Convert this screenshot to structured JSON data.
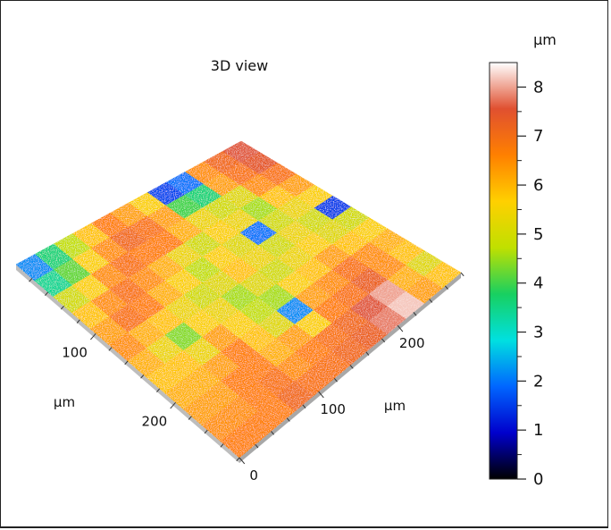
{
  "chart_data": {
    "type": "heatmap",
    "title": "3D view",
    "surface_unit": "µm",
    "x_axis": {
      "label": "µm",
      "ticks": [
        "0",
        "100",
        "200"
      ],
      "range": [
        0,
        280
      ]
    },
    "y_axis": {
      "label": "µm",
      "ticks": [
        "100",
        "200"
      ],
      "range": [
        0,
        280
      ]
    },
    "colorbar": {
      "unit": "µm",
      "range": [
        0,
        8.5
      ],
      "ticks": [
        "0",
        "1",
        "2",
        "3",
        "4",
        "5",
        "6",
        "7",
        "8"
      ],
      "colormap": [
        "#000000",
        "#0000cc",
        "#0066ff",
        "#00e0e0",
        "#18d060",
        "#c0e000",
        "#ffd000",
        "#ff8000",
        "#e05030",
        "#ffffff"
      ]
    },
    "surface_height_grid": [
      [
        7.6,
        7.4,
        6.8,
        6.2,
        5.6,
        1.5,
        5.0,
        5.6,
        6.0,
        5.8,
        5.2,
        5.8
      ],
      [
        7.0,
        6.8,
        6.4,
        5.8,
        5.4,
        5.0,
        5.2,
        5.8,
        6.4,
        6.4,
        6.0,
        6.2
      ],
      [
        6.4,
        6.2,
        5.2,
        4.6,
        5.0,
        5.4,
        5.6,
        6.2,
        6.8,
        7.2,
        8.0,
        8.2
      ],
      [
        2.0,
        3.6,
        5.0,
        5.4,
        2.0,
        5.0,
        5.4,
        5.8,
        6.4,
        6.8,
        7.6,
        7.8
      ],
      [
        1.6,
        4.0,
        5.4,
        5.6,
        5.2,
        5.4,
        5.0,
        5.6,
        6.2,
        6.6,
        7.0,
        7.2
      ],
      [
        5.6,
        6.2,
        6.0,
        5.0,
        5.6,
        5.8,
        5.2,
        4.6,
        2.2,
        5.6,
        6.8,
        7.0
      ],
      [
        6.2,
        6.8,
        6.6,
        5.4,
        4.8,
        5.2,
        4.6,
        4.8,
        5.2,
        6.2,
        6.6,
        6.8
      ],
      [
        6.6,
        7.0,
        6.6,
        6.0,
        5.6,
        5.0,
        5.4,
        5.6,
        5.8,
        6.0,
        6.4,
        6.8
      ],
      [
        5.8,
        6.4,
        6.8,
        6.4,
        6.0,
        5.4,
        5.6,
        6.2,
        6.6,
        6.6,
        6.8,
        7.0
      ],
      [
        4.8,
        5.6,
        6.4,
        6.8,
        6.6,
        5.8,
        4.4,
        5.4,
        6.2,
        6.6,
        6.6,
        6.6
      ],
      [
        3.6,
        4.2,
        5.6,
        6.4,
        6.8,
        6.0,
        5.4,
        5.8,
        6.0,
        6.2,
        6.4,
        6.6
      ],
      [
        2.2,
        3.4,
        5.0,
        5.8,
        6.2,
        6.4,
        6.0,
        5.8,
        6.0,
        6.2,
        6.4,
        6.6
      ]
    ]
  }
}
